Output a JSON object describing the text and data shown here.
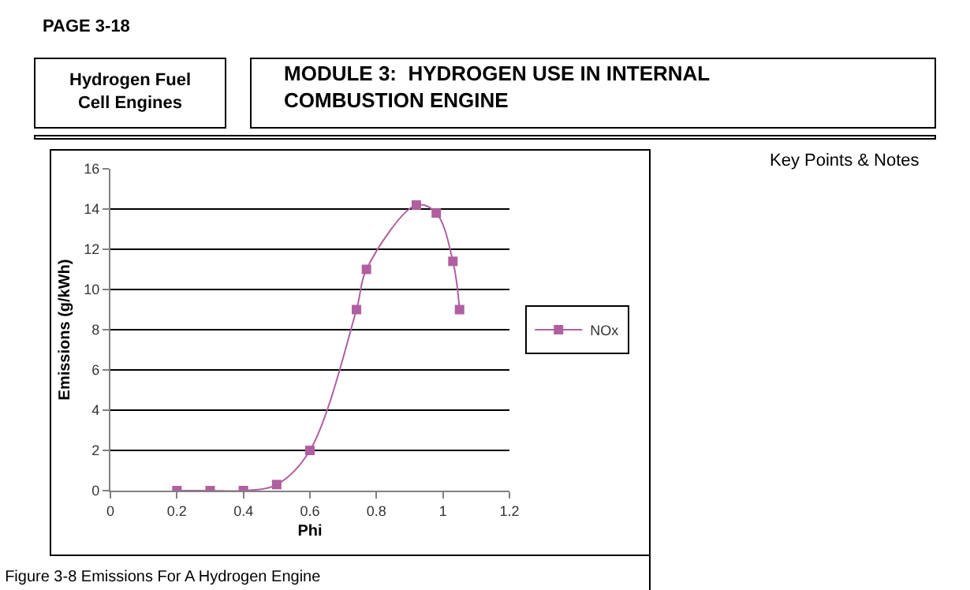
{
  "chart_data": {
    "type": "line",
    "title": "Figure 3-8 Emissions For A Hydrogen Engine",
    "xlabel": "Phi",
    "ylabel": "Emissions (g/kWh)",
    "annotations": [
      "PAGE 3-18",
      "Hydrogen Fuel\nCell Engines",
      "MODULE 3:  HYDROGEN USE IN INTERNAL\nCOMBUSTION ENGINE",
      "Key Points & Notes"
    ],
    "x": [
      0.2,
      0.3,
      0.4,
      0.5,
      0.6,
      0.74,
      0.77,
      0.92,
      0.98,
      1.03,
      1.05
    ],
    "series": [
      {
        "name": "NOx",
        "color": "#b05fa0",
        "values": [
          0,
          0,
          0,
          0.3,
          2,
          9,
          11,
          14.2,
          13.8,
          11.4,
          9
        ]
      }
    ],
    "xlim": [
      0,
      1.2
    ],
    "xticks": [
      0,
      0.2,
      0.4,
      0.6,
      0.8,
      1,
      1.2
    ],
    "ylim": [
      0,
      16
    ],
    "yticks": [
      0,
      2,
      4,
      6,
      8,
      10,
      12,
      14,
      16
    ],
    "grid": "y",
    "legend": "right",
    "marker": "square",
    "line_style": "solid"
  }
}
